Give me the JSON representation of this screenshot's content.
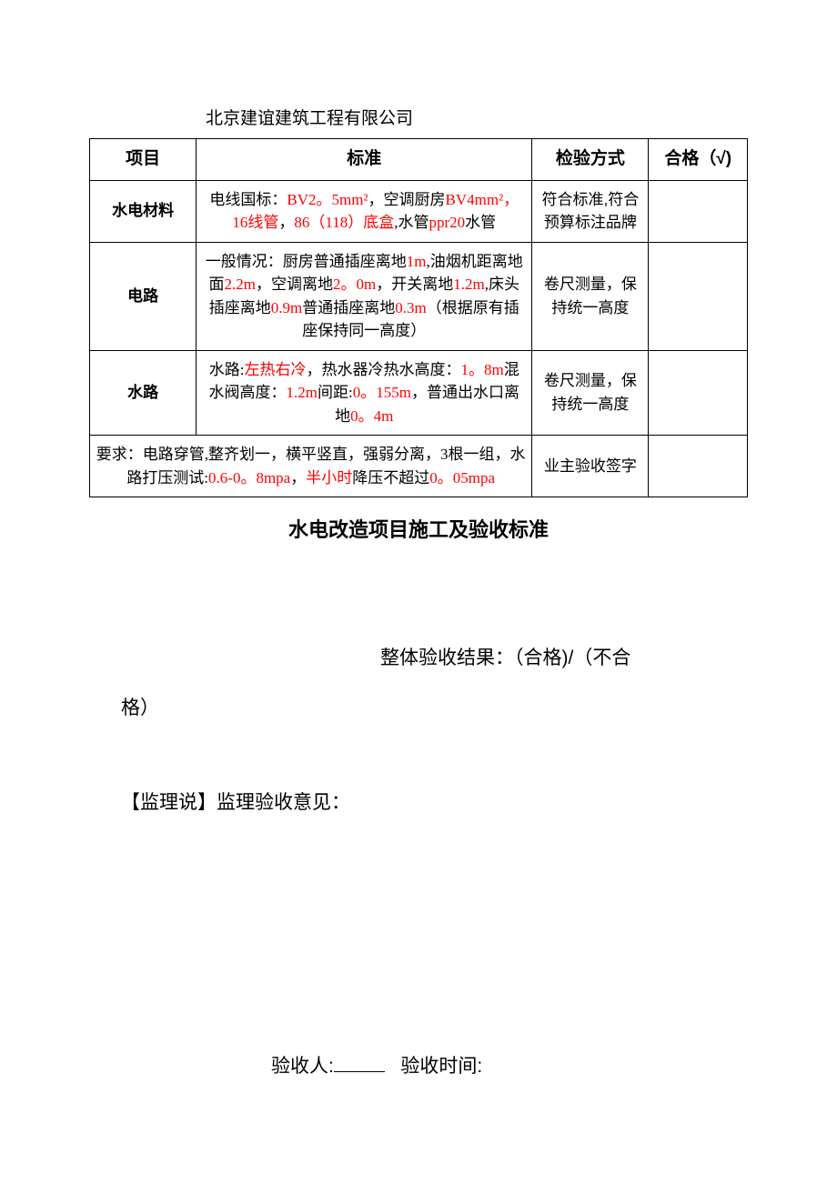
{
  "company": "北京建谊建筑工程有限公司",
  "colors": {
    "text": "#000000",
    "highlight": "#ff0000",
    "border": "#000000",
    "background": "#ffffff"
  },
  "table": {
    "headers": {
      "project": "项目",
      "standard": "标准",
      "method": "检验方式",
      "pass": "合格（√)"
    },
    "rows": [
      {
        "project": "水电材料",
        "standard_parts": [
          {
            "text": "电线国标：",
            "red": false
          },
          {
            "text": "BV2。5mm²",
            "red": true
          },
          {
            "text": "，空调厨房",
            "red": false
          },
          {
            "text": "BV4mm²，16线管",
            "red": true
          },
          {
            "text": "，",
            "red": false
          },
          {
            "text": "86（118）底盒",
            "red": true
          },
          {
            "text": ",水管",
            "red": false
          },
          {
            "text": "ppr20",
            "red": true
          },
          {
            "text": "水管",
            "red": false
          }
        ],
        "method": "符合标准,符合预算标注品牌",
        "pass": ""
      },
      {
        "project": "电路",
        "standard_parts": [
          {
            "text": "一般情况：厨房普通插座离地",
            "red": false
          },
          {
            "text": "1m",
            "red": true
          },
          {
            "text": ",油烟机距离地面",
            "red": false
          },
          {
            "text": "2.2m",
            "red": true
          },
          {
            "text": "，空调离地",
            "red": false
          },
          {
            "text": "2。0m",
            "red": true
          },
          {
            "text": "，开关离地",
            "red": false
          },
          {
            "text": "1.2m",
            "red": true
          },
          {
            "text": ",床头插座离地",
            "red": false
          },
          {
            "text": "0.9m",
            "red": true
          },
          {
            "text": "普通插座离地",
            "red": false
          },
          {
            "text": "0.3m",
            "red": true
          },
          {
            "text": "（根据原有插座保持同一高度）",
            "red": false
          }
        ],
        "method": "卷尺测量，保持统一高度",
        "pass": ""
      },
      {
        "project": "水路",
        "standard_parts": [
          {
            "text": "水路:",
            "red": false
          },
          {
            "text": "左热右冷",
            "red": true
          },
          {
            "text": "，热水器冷热水高度：",
            "red": false
          },
          {
            "text": "1。8m",
            "red": true
          },
          {
            "text": "混水阀高度：",
            "red": false
          },
          {
            "text": "1.2m",
            "red": true
          },
          {
            "text": "间距:",
            "red": false
          },
          {
            "text": "0。155m",
            "red": true
          },
          {
            "text": "，普通出水口离地",
            "red": false
          },
          {
            "text": "0。4m",
            "red": true
          }
        ],
        "method": "卷尺测量，保持统一高度",
        "pass": ""
      }
    ],
    "footer_row": {
      "standard_parts": [
        {
          "text": "要求：电路穿管,整齐划一，横平竖直，强弱分离，3根一组，水路打压测试:",
          "red": false
        },
        {
          "text": "0.6-0。8mpa",
          "red": true
        },
        {
          "text": "，",
          "red": false
        },
        {
          "text": "半小时",
          "red": true
        },
        {
          "text": "降压不超过",
          "red": false
        },
        {
          "text": "0。05mpa",
          "red": true
        }
      ],
      "method": "业主验收签字",
      "pass": ""
    }
  },
  "doc_title": "水电改造项目施工及验收标准",
  "result_label": "整体验收结果：（合格)/（不合格）",
  "result_prefix": "整体验收结果：（合格)/（不合",
  "result_suffix": "格）",
  "supervisor_label": "【监理说】监理验收意见：",
  "signature": {
    "inspector_label": "验收人:",
    "time_label": "验收时间:"
  }
}
